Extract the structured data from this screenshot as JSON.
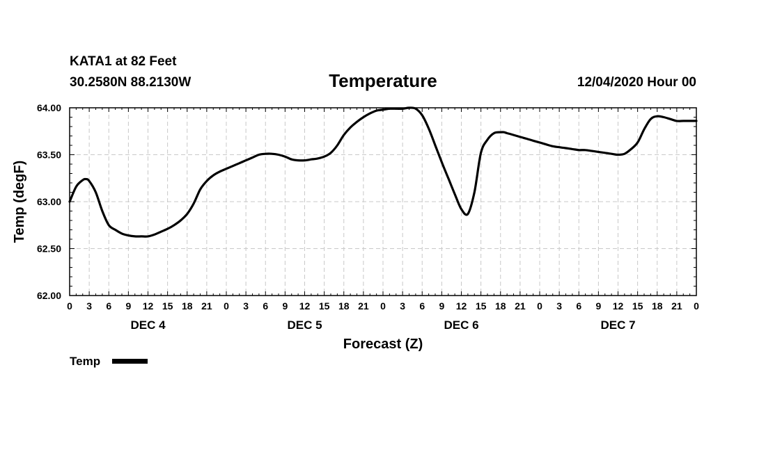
{
  "header": {
    "station": "KATA1 at 82 Feet",
    "coords": "30.2580N 88.2130W",
    "issued": "12/04/2020 Hour 00"
  },
  "chart_data": {
    "type": "line",
    "title": "Temperature",
    "xlabel": "Forecast (Z)",
    "ylabel": "Temp (degF)",
    "ylim": [
      62.0,
      64.0
    ],
    "yticks": [
      "62.00",
      "62.50",
      "63.00",
      "63.50",
      "64.00"
    ],
    "xlim_hours": [
      0,
      96
    ],
    "xtick_labels": [
      "0",
      "3",
      "6",
      "9",
      "12",
      "15",
      "18",
      "21",
      "0",
      "3",
      "6",
      "9",
      "12",
      "15",
      "18",
      "21",
      "0",
      "3",
      "6",
      "9",
      "12",
      "15",
      "18",
      "21",
      "0",
      "3",
      "6",
      "9",
      "12",
      "15",
      "18",
      "21",
      "0"
    ],
    "days": [
      {
        "label": "DEC 4",
        "center_hour": 12
      },
      {
        "label": "DEC 5",
        "center_hour": 36
      },
      {
        "label": "DEC 6",
        "center_hour": 60
      },
      {
        "label": "DEC 7",
        "center_hour": 84
      }
    ],
    "grid": true,
    "legend": "bottom-left",
    "series": [
      {
        "name": "Temp",
        "color": "#000000",
        "x": [
          0,
          1,
          2,
          2.5,
          3,
          4,
          5,
          6,
          7,
          8,
          9,
          10,
          11,
          12,
          13,
          14,
          15,
          16,
          17,
          18,
          19,
          20,
          21,
          22,
          23,
          24,
          25,
          26,
          27,
          28,
          29,
          30,
          31,
          32,
          33,
          34,
          35,
          36,
          37,
          38,
          39,
          40,
          41,
          42,
          43,
          44,
          45,
          46,
          47,
          48,
          49,
          50,
          51,
          52,
          53,
          54,
          55,
          56,
          57,
          58,
          59,
          60,
          61,
          62,
          63,
          64,
          65,
          66,
          66.5,
          67,
          68,
          69,
          70,
          71,
          72,
          73,
          74,
          75,
          76,
          77,
          78,
          79,
          80,
          81,
          82,
          83,
          84,
          85,
          86,
          87,
          88,
          89,
          90,
          91,
          92,
          93,
          94,
          95,
          96
        ],
        "values": [
          63.0,
          63.16,
          63.23,
          63.24,
          63.22,
          63.1,
          62.9,
          62.75,
          62.7,
          62.66,
          62.64,
          62.63,
          62.63,
          62.63,
          62.65,
          62.68,
          62.71,
          62.75,
          62.8,
          62.87,
          62.98,
          63.13,
          63.22,
          63.28,
          63.32,
          63.35,
          63.38,
          63.41,
          63.44,
          63.47,
          63.5,
          63.51,
          63.51,
          63.5,
          63.48,
          63.45,
          63.44,
          63.44,
          63.45,
          63.46,
          63.48,
          63.52,
          63.6,
          63.71,
          63.79,
          63.85,
          63.9,
          63.94,
          63.97,
          63.98,
          63.99,
          63.99,
          63.99,
          64.0,
          63.99,
          63.92,
          63.78,
          63.6,
          63.42,
          63.25,
          63.08,
          62.92,
          62.87,
          63.1,
          63.52,
          63.66,
          63.73,
          63.74,
          63.74,
          63.73,
          63.71,
          63.69,
          63.67,
          63.65,
          63.63,
          63.61,
          63.59,
          63.58,
          63.57,
          63.56,
          63.55,
          63.55,
          63.54,
          63.53,
          63.52,
          63.51,
          63.5,
          63.51,
          63.56,
          63.63,
          63.77,
          63.88,
          63.91,
          63.9,
          63.88,
          63.86,
          63.86,
          63.86,
          63.86
        ]
      }
    ]
  }
}
